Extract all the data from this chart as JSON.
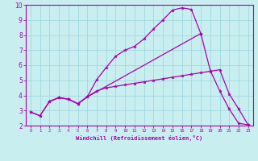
{
  "xlabel": "Windchill (Refroidissement éolien,°C)",
  "background_color": "#c8eef0",
  "grid_color": "#a0d8e0",
  "line_color": "#aa00aa",
  "spine_color": "#aa00aa",
  "xlim": [
    -0.5,
    23.5
  ],
  "ylim": [
    2,
    10
  ],
  "xticks": [
    0,
    1,
    2,
    3,
    4,
    5,
    6,
    7,
    8,
    9,
    10,
    11,
    12,
    13,
    14,
    15,
    16,
    17,
    18,
    19,
    20,
    21,
    22,
    23
  ],
  "yticks": [
    2,
    3,
    4,
    5,
    6,
    7,
    8,
    9,
    10
  ],
  "lines": [
    {
      "x": [
        0,
        1,
        2,
        3,
        4,
        5,
        6,
        7,
        8,
        9,
        10,
        11,
        12,
        13,
        14,
        15,
        16,
        17,
        18
      ],
      "y": [
        2.9,
        2.65,
        3.6,
        3.85,
        3.75,
        3.45,
        3.9,
        5.05,
        5.85,
        6.6,
        7.0,
        7.25,
        7.75,
        8.4,
        9.0,
        9.65,
        9.8,
        9.7,
        8.1
      ]
    },
    {
      "x": [
        0,
        1,
        2,
        3,
        4,
        5,
        6,
        18,
        19,
        20,
        21,
        22,
        23
      ],
      "y": [
        2.9,
        2.65,
        3.6,
        3.85,
        3.75,
        3.45,
        3.9,
        8.1,
        5.65,
        4.3,
        3.1,
        2.15,
        2.05
      ]
    },
    {
      "x": [
        2,
        3,
        4,
        5,
        6,
        7,
        8,
        9,
        10,
        11,
        12,
        13,
        14,
        15,
        16,
        17,
        18,
        19,
        20,
        21,
        22,
        23
      ],
      "y": [
        3.6,
        3.85,
        3.75,
        3.45,
        3.9,
        4.3,
        4.5,
        4.6,
        4.7,
        4.8,
        4.9,
        5.0,
        5.1,
        5.2,
        5.3,
        5.4,
        5.5,
        5.6,
        5.7,
        4.1,
        3.1,
        2.05
      ]
    }
  ]
}
